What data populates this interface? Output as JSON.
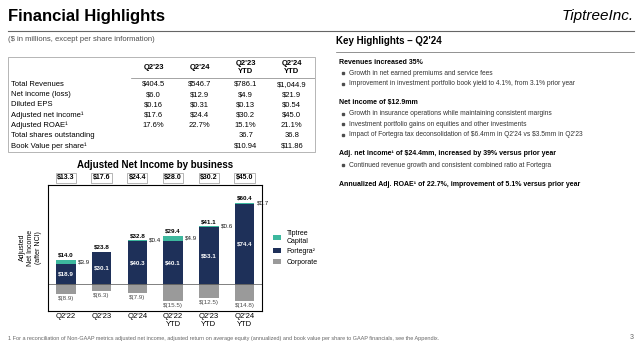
{
  "chart_data": {
    "type": "bar",
    "stacked": true,
    "title": "Adjusted Net Income by business",
    "subtitle": "($ in millions, except per share information)",
    "ylabel": "Adjusted\nNet Income\n(after NCI)",
    "categories": [
      "Q2'22",
      "Q2'23",
      "Q2'24",
      "Q2'22\nYTD",
      "Q2'23\nYTD",
      "Q2'24\nYTD"
    ],
    "series": [
      {
        "name": "Corporate",
        "color": "#9a9a9a",
        "values": [
          -8.9,
          -6.3,
          -7.9,
          -15.5,
          -12.5,
          -14.8
        ],
        "value_labels": [
          "$(8.9)",
          "$(6.3)",
          "$(7.9)",
          "$(15.5)",
          "$(12.5)",
          "$(14.8)"
        ]
      },
      {
        "name": "Fortegra²",
        "color": "#1e3059",
        "values": [
          18.9,
          30.1,
          40.3,
          40.1,
          53.1,
          74.4
        ],
        "value_labels": [
          "$18.9",
          "$30.1",
          "$40.3",
          "$40.1",
          "$53.1",
          "$74.4"
        ]
      },
      {
        "name": "Tiptree\nCapital",
        "color": "#3db89e",
        "values": [
          3.9,
          0.0,
          0.4,
          4.9,
          0.6,
          0.7
        ],
        "value_labels": [
          "$3.9",
          null,
          "$0.4",
          "$4.9",
          "$0.6",
          "$0.7"
        ]
      }
    ],
    "data_labels": true,
    "ylim": [
      -24,
      92
    ],
    "yticks": [],
    "tick_labels": "x",
    "grid": false,
    "legend": "center left",
    "annotations": {
      "page_title": "Financial Highlights",
      "logo": "TiptreeInc.",
      "page_number": "3",
      "bar_top_labels": [
        "$14.0",
        "$23.8",
        "$32.8",
        "$29.4",
        "$41.1",
        "$60.4"
      ],
      "bar_total_labels": [
        "$13.3",
        "$17.6",
        "$24.4",
        "$28.0",
        "$30.2",
        "$45.0"
      ],
      "table": {
        "headers": [
          "Q2'23",
          "Q2'24",
          "Q2'23\nYTD",
          "Q2'24\nYTD"
        ],
        "rows": [
          [
            "Total Revenues",
            "$404.5",
            "$546.7",
            "$786.1",
            "$1,044.9"
          ],
          [
            "Net income (loss)",
            "$6.0",
            "$12.9",
            "$4.9",
            "$21.9"
          ],
          [
            "Diluted EPS",
            "$0.16",
            "$0.31",
            "$0.13",
            "$0.54"
          ],
          [
            "Adjusted net income¹",
            "$17.6",
            "$24.4",
            "$30.2",
            "$45.0"
          ],
          [
            "Adjusted ROAE¹",
            "17.6%",
            "22.7%",
            "15.1%",
            "21.1%"
          ],
          [
            "Total shares outstanding",
            null,
            null,
            "36.7",
            "36.8"
          ],
          [
            "Book Value per share¹",
            null,
            null,
            "$10.94",
            "$11.86"
          ]
        ]
      },
      "highlights_title": "Key Highlights – Q2'24",
      "highlights": [
        {
          "heading": "Revenues increased 35%",
          "bullets": [
            "Growth in net earned premiums and service fees",
            "Improvement in investment portfolio book yield to 4.1%, from 3.1% prior year"
          ]
        },
        {
          "heading": "Net income of $12.9mm",
          "bullets": [
            "Growth in insurance operations while maintaining consistent margins",
            "Investment portfolio gains on equities and other investments",
            "Impact of Fortegra tax deconsolidation of $6.4mm in Q2'24 vs $3.5mm in Q2'23"
          ]
        },
        {
          "heading": "Adj. net income¹ of $24.4mm, increased by 39% versus prior year",
          "bullets": [
            "Continued revenue growth and consistent combined ratio at Fortegra"
          ]
        },
        {
          "heading": "Annualized Adj. ROAE¹ of 22.7%, improvement of 5.1% versus prior year",
          "bullets": []
        }
      ],
      "footnote": "1 For a reconciliation of Non-GAAP metrics adjusted net income, adjusted return on average equity (annualized) and book value per share to GAAP financials, see the Appendix."
    }
  }
}
